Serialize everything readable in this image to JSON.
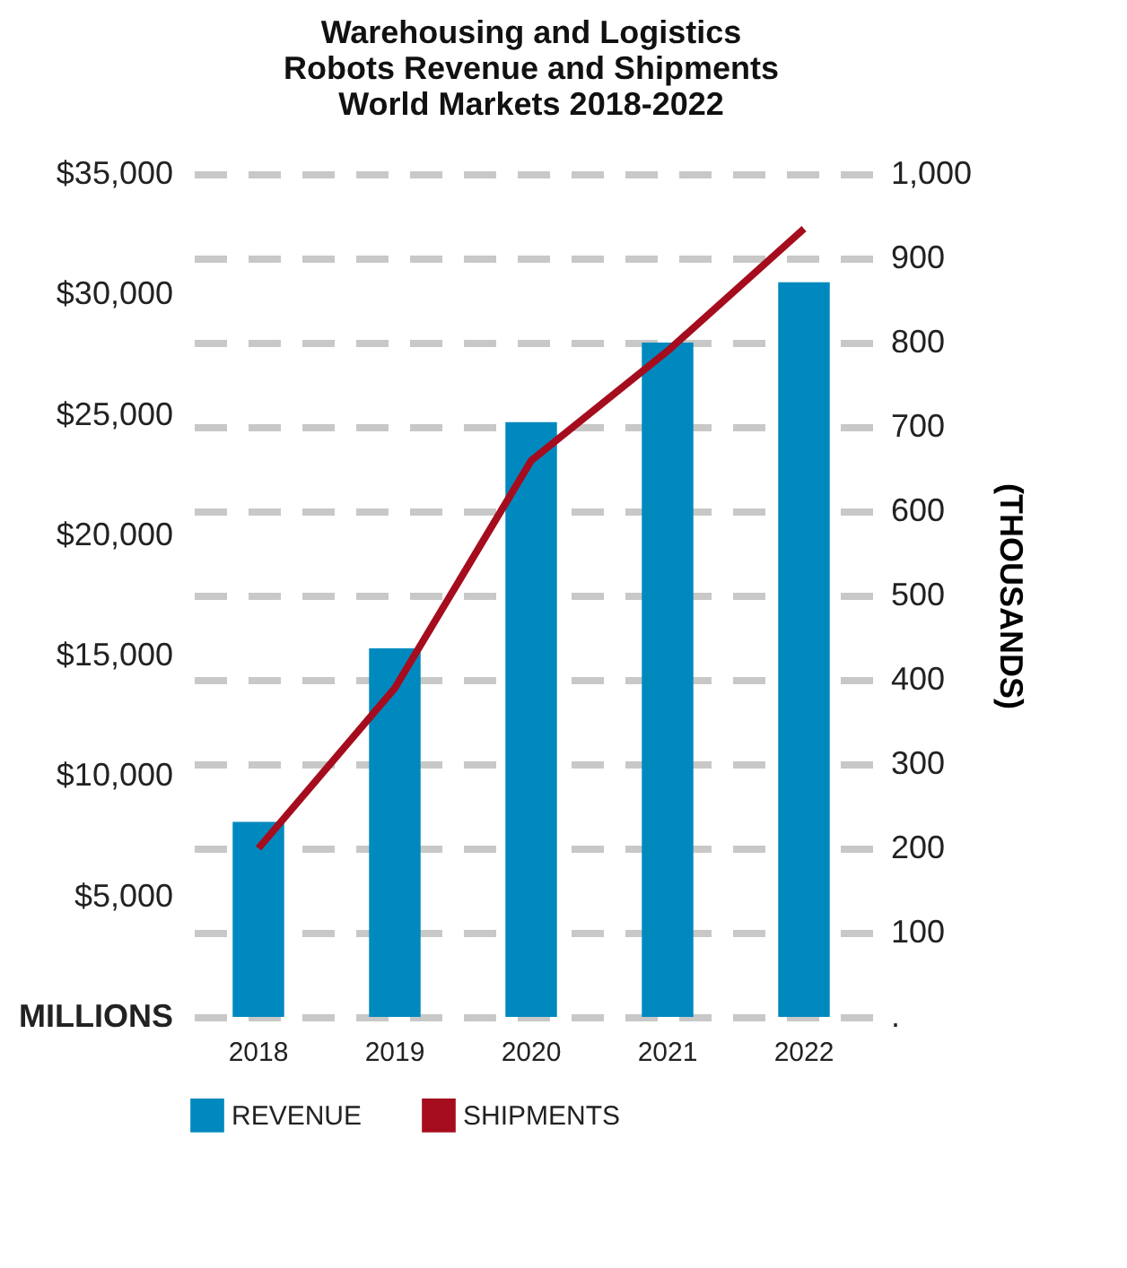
{
  "chart_data": {
    "type": "bar",
    "title": [
      "Warehousing and Logistics",
      "Robots Revenue and Shipments",
      "World Markets 2018-2022"
    ],
    "categories": [
      "2018",
      "2019",
      "2020",
      "2021",
      "2022"
    ],
    "series": [
      {
        "name": "REVENUE",
        "color": "#0089bf",
        "values": [
          8100,
          15300,
          24700,
          28000,
          30500
        ]
      },
      {
        "name": "SHIPMENTS",
        "type": "line",
        "axis": "y2",
        "color": "#a50d1e",
        "values": [
          200,
          390,
          660,
          790,
          935
        ]
      }
    ],
    "ylim": [
      0,
      35000
    ],
    "yticks": [
      {
        "value": 0,
        "label": "MILLIONS"
      },
      {
        "value": 5000,
        "label": "$5,000"
      },
      {
        "value": 10000,
        "label": "$10,000"
      },
      {
        "value": 15000,
        "label": "$15,000"
      },
      {
        "value": 20000,
        "label": "$20,000"
      },
      {
        "value": 25000,
        "label": "$25,000"
      },
      {
        "value": 30000,
        "label": "$30,000"
      },
      {
        "value": 35000,
        "label": "$35,000"
      }
    ],
    "y2lim": [
      0,
      1000
    ],
    "y2ticks": [
      {
        "value": 0,
        "label": "."
      },
      100,
      200,
      300,
      400,
      500,
      600,
      700,
      800,
      900,
      {
        "value": 1000,
        "label": "1,000"
      }
    ],
    "y2label": "(THOUSANDS)",
    "grid": true,
    "legend": "bottom"
  }
}
